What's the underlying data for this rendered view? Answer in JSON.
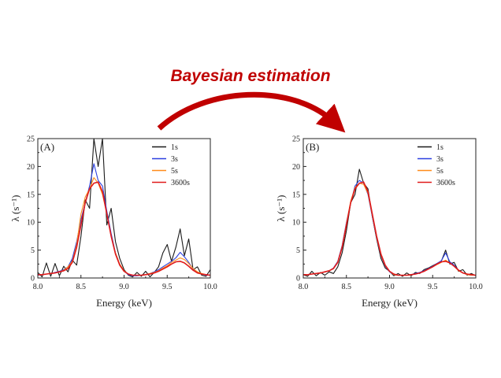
{
  "headline": {
    "text": "Bayesian estimation",
    "color": "#c00000",
    "arrow_color": "#c00000"
  },
  "chart_data": [
    {
      "type": "line",
      "panel_label": "(A)",
      "xlabel": "Energy (keV)",
      "ylabel": "λ (s⁻¹)",
      "xlim": [
        8.0,
        10.0
      ],
      "ylim": [
        0,
        25
      ],
      "xticks": [
        "8.0",
        "8.5",
        "9.0",
        "9.5",
        "10.0"
      ],
      "yticks": [
        "0",
        "5",
        "10",
        "15",
        "20",
        "25"
      ],
      "legend_position": "top-right",
      "grid": false,
      "x": [
        8.0,
        8.05,
        8.1,
        8.15,
        8.2,
        8.25,
        8.3,
        8.35,
        8.4,
        8.45,
        8.5,
        8.55,
        8.6,
        8.65,
        8.7,
        8.75,
        8.8,
        8.85,
        8.9,
        8.95,
        9.0,
        9.05,
        9.1,
        9.15,
        9.2,
        9.25,
        9.3,
        9.35,
        9.4,
        9.45,
        9.5,
        9.55,
        9.6,
        9.65,
        9.7,
        9.75,
        9.8,
        9.85,
        9.9,
        9.95,
        10.0
      ],
      "series": [
        {
          "name": "1s",
          "color": "#1a1a1a",
          "values": [
            1.0,
            0.2,
            2.7,
            0.3,
            2.6,
            0.4,
            2.1,
            1.1,
            3.2,
            2.3,
            7.5,
            14.0,
            12.5,
            25.0,
            20.0,
            25.0,
            9.5,
            12.5,
            6.5,
            3.5,
            1.5,
            0.5,
            0.2,
            1.0,
            0.3,
            1.2,
            0.2,
            1.0,
            2.0,
            4.5,
            6.0,
            3.0,
            5.5,
            8.8,
            4.0,
            7.0,
            1.5,
            2.0,
            0.5,
            0.3,
            1.5
          ]
        },
        {
          "name": "3s",
          "color": "#2b3fe0",
          "values": [
            0.5,
            0.6,
            0.7,
            0.8,
            1.0,
            1.2,
            1.5,
            2.0,
            3.5,
            6.5,
            10.5,
            13.5,
            16.5,
            20.5,
            17.5,
            16.5,
            12.0,
            8.0,
            4.5,
            2.5,
            1.2,
            0.6,
            0.4,
            0.4,
            0.5,
            0.6,
            0.8,
            1.1,
            1.5,
            2.0,
            2.5,
            3.0,
            3.6,
            4.6,
            3.8,
            2.8,
            1.6,
            1.0,
            0.7,
            0.5,
            0.5
          ]
        },
        {
          "name": "5s",
          "color": "#ff8c1a",
          "values": [
            0.6,
            0.6,
            0.7,
            0.8,
            0.9,
            1.1,
            1.4,
            2.0,
            3.0,
            6.0,
            11.5,
            14.5,
            16.0,
            18.0,
            17.0,
            15.0,
            11.5,
            7.5,
            4.5,
            2.5,
            1.3,
            0.7,
            0.5,
            0.5,
            0.5,
            0.6,
            0.8,
            1.0,
            1.3,
            1.8,
            2.2,
            2.8,
            3.2,
            3.6,
            3.3,
            2.6,
            1.7,
            1.1,
            0.8,
            0.6,
            0.5
          ]
        },
        {
          "name": "3600s",
          "color": "#e01a1a",
          "values": [
            0.6,
            0.6,
            0.7,
            0.8,
            0.9,
            1.1,
            1.3,
            1.7,
            2.8,
            5.5,
            9.5,
            13.5,
            16.0,
            17.0,
            17.2,
            15.5,
            11.5,
            7.5,
            4.3,
            2.3,
            1.2,
            0.7,
            0.5,
            0.5,
            0.5,
            0.6,
            0.7,
            0.9,
            1.2,
            1.6,
            2.0,
            2.5,
            2.9,
            3.0,
            2.7,
            2.1,
            1.4,
            0.9,
            0.7,
            0.6,
            0.5
          ]
        }
      ]
    },
    {
      "type": "line",
      "panel_label": "(B)",
      "xlabel": "Energy (keV)",
      "ylabel": "λ (s⁻¹)",
      "xlim": [
        8.0,
        10.0
      ],
      "ylim": [
        0,
        25
      ],
      "xticks": [
        "8.0",
        "8.5",
        "9.0",
        "9.5",
        "10.0"
      ],
      "yticks": [
        "0",
        "5",
        "10",
        "15",
        "20",
        "25"
      ],
      "legend_position": "top-right",
      "grid": false,
      "x": [
        8.0,
        8.05,
        8.1,
        8.15,
        8.2,
        8.25,
        8.3,
        8.35,
        8.4,
        8.45,
        8.5,
        8.55,
        8.6,
        8.65,
        8.7,
        8.75,
        8.8,
        8.85,
        8.9,
        8.95,
        9.0,
        9.05,
        9.1,
        9.15,
        9.2,
        9.25,
        9.3,
        9.35,
        9.4,
        9.45,
        9.5,
        9.55,
        9.6,
        9.65,
        9.7,
        9.75,
        9.8,
        9.85,
        9.9,
        9.95,
        10.0
      ],
      "series": [
        {
          "name": "1s",
          "color": "#1a1a1a",
          "values": [
            0.6,
            0.3,
            1.2,
            0.4,
            1.0,
            0.5,
            1.1,
            0.8,
            2.0,
            4.5,
            8.5,
            13.5,
            15.0,
            19.5,
            17.0,
            16.0,
            11.0,
            7.0,
            3.5,
            1.8,
            1.2,
            0.4,
            0.8,
            0.3,
            0.9,
            0.4,
            1.0,
            0.8,
            1.5,
            1.8,
            2.2,
            2.6,
            3.0,
            5.0,
            2.5,
            2.8,
            1.2,
            1.5,
            0.5,
            0.8,
            0.4
          ]
        },
        {
          "name": "3s",
          "color": "#2b3fe0",
          "values": [
            0.6,
            0.6,
            0.7,
            0.8,
            0.9,
            1.1,
            1.3,
            1.8,
            3.0,
            5.8,
            10.0,
            13.5,
            16.5,
            17.5,
            17.0,
            15.0,
            11.0,
            7.2,
            4.0,
            2.1,
            1.1,
            0.6,
            0.5,
            0.5,
            0.5,
            0.6,
            0.8,
            1.0,
            1.3,
            1.7,
            2.1,
            2.6,
            3.1,
            4.5,
            2.9,
            2.3,
            1.4,
            0.9,
            0.6,
            0.5,
            0.5
          ]
        },
        {
          "name": "5s",
          "color": "#ff8c1a",
          "values": [
            0.6,
            0.6,
            0.7,
            0.8,
            0.9,
            1.1,
            1.3,
            1.7,
            2.9,
            5.6,
            9.8,
            13.8,
            16.2,
            17.0,
            16.8,
            15.2,
            11.2,
            7.3,
            4.1,
            2.2,
            1.2,
            0.6,
            0.5,
            0.5,
            0.5,
            0.6,
            0.7,
            0.9,
            1.2,
            1.6,
            2.0,
            2.4,
            2.8,
            3.2,
            2.7,
            2.1,
            1.3,
            0.9,
            0.6,
            0.5,
            0.5
          ]
        },
        {
          "name": "3600s",
          "color": "#e01a1a",
          "values": [
            0.6,
            0.6,
            0.7,
            0.8,
            0.9,
            1.1,
            1.3,
            1.7,
            2.8,
            5.5,
            9.5,
            13.5,
            16.0,
            17.0,
            17.2,
            15.5,
            11.5,
            7.5,
            4.3,
            2.3,
            1.2,
            0.7,
            0.5,
            0.5,
            0.5,
            0.6,
            0.7,
            0.9,
            1.2,
            1.6,
            2.0,
            2.5,
            2.9,
            3.0,
            2.7,
            2.1,
            1.4,
            0.9,
            0.7,
            0.6,
            0.5
          ]
        }
      ]
    }
  ]
}
